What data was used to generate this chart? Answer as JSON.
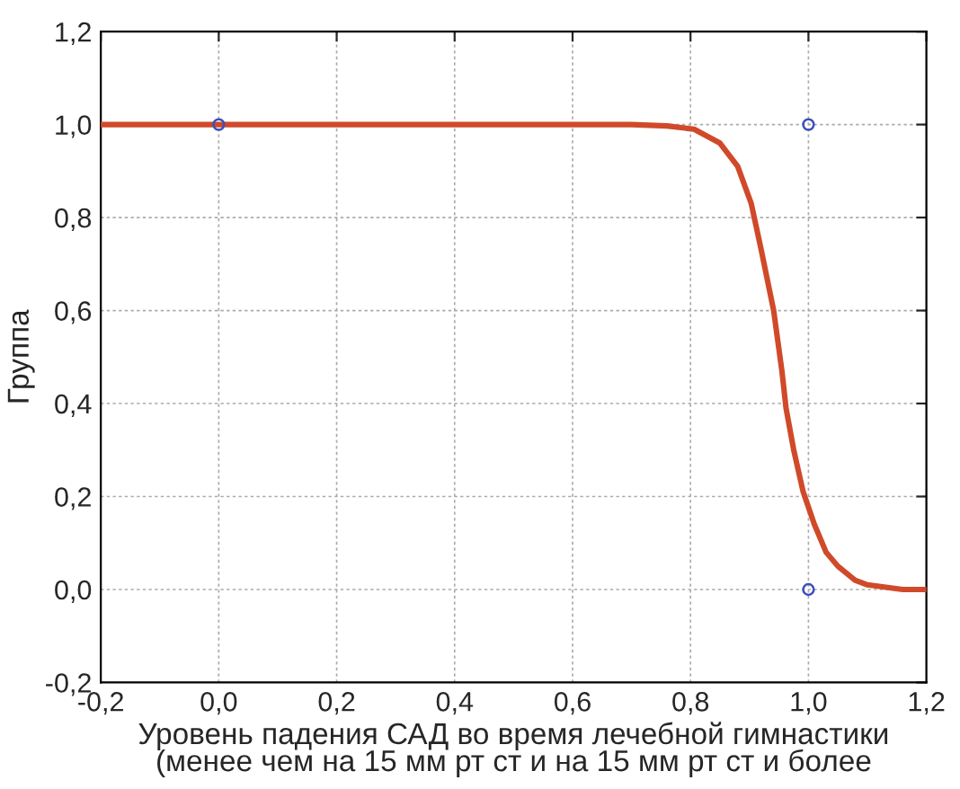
{
  "chart_data": {
    "type": "line",
    "xlabel": "Уровень падения САД во время лечебной гимнастики\n(менее чем на 15 мм рт ст и на 15 мм рт ст и более",
    "ylabel": "Группа",
    "xlim": [
      -0.2,
      1.2
    ],
    "ylim": [
      -0.2,
      1.2
    ],
    "xticks": [
      {
        "value": -0.2,
        "label": "-0,2"
      },
      {
        "value": 0,
        "label": "0,0"
      },
      {
        "value": 0.2,
        "label": "0,2"
      },
      {
        "value": 0.4,
        "label": "0,4"
      },
      {
        "value": 0.6,
        "label": "0,6"
      },
      {
        "value": 0.8,
        "label": "0,8"
      },
      {
        "value": 1.0,
        "label": "1,0"
      },
      {
        "value": 1.2,
        "label": "1,2"
      }
    ],
    "yticks": [
      {
        "value": -0.2,
        "label": "-0,2"
      },
      {
        "value": 0,
        "label": "0,0"
      },
      {
        "value": 0.2,
        "label": "0,2"
      },
      {
        "value": 0.4,
        "label": "0,4"
      },
      {
        "value": 0.6,
        "label": "0,6"
      },
      {
        "value": 0.8,
        "label": "0,8"
      },
      {
        "value": 1.0,
        "label": "1,0"
      },
      {
        "value": 1.2,
        "label": "1,2"
      }
    ],
    "grid": true,
    "series": [
      {
        "color": "#d04a2a",
        "x": [
          -0.2,
          0.0,
          0.2,
          0.4,
          0.6,
          0.7,
          0.76,
          0.806,
          0.85,
          0.88,
          0.903,
          0.92,
          0.941,
          0.955,
          0.962,
          0.975,
          0.991,
          1.01,
          1.03,
          1.05,
          1.079,
          1.1,
          1.16,
          1.2
        ],
        "values": [
          1.0,
          1.0,
          1.0,
          1.0,
          1.0,
          1.0,
          0.997,
          0.99,
          0.96,
          0.91,
          0.83,
          0.73,
          0.6,
          0.47,
          0.39,
          0.3,
          0.21,
          0.14,
          0.08,
          0.05,
          0.02,
          0.01,
          0.0,
          0.0
        ],
        "marker": "none"
      },
      {
        "type": "scatter",
        "color": "#3a4fbf",
        "x": [
          0.0,
          1.0,
          1.0
        ],
        "values": [
          1.0,
          1.0,
          0.0
        ],
        "marker": "circle"
      }
    ]
  }
}
